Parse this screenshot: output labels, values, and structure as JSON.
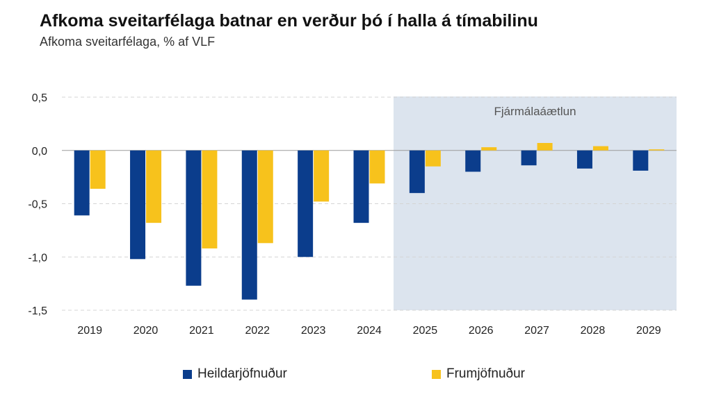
{
  "title": "Afkoma sveitarfélaga batnar en verður þó í halla á tímabilinu",
  "subtitle": "Afkoma sveitarfélaga, % af VLF",
  "chart_data": {
    "type": "bar",
    "categories": [
      "2019",
      "2020",
      "2021",
      "2022",
      "2023",
      "2024",
      "2025",
      "2026",
      "2027",
      "2028",
      "2029"
    ],
    "series": [
      {
        "name": "Heildarjöfnuður",
        "color": "#0b3d8c",
        "values": [
          -0.61,
          -1.02,
          -1.27,
          -1.4,
          -1.0,
          -0.68,
          -0.4,
          -0.2,
          -0.14,
          -0.17,
          -0.19
        ]
      },
      {
        "name": "Frumjöfnuður",
        "color": "#f7c21c",
        "values": [
          -0.36,
          -0.68,
          -0.92,
          -0.87,
          -0.48,
          -0.31,
          -0.15,
          0.03,
          0.07,
          0.04,
          0.01
        ]
      }
    ],
    "ylim": [
      -1.5,
      0.5
    ],
    "yticks": [
      0.5,
      0.0,
      -0.5,
      -1.0,
      -1.5
    ],
    "ytick_labels": [
      "0,5",
      "0,0",
      "-0,5",
      "-1,0",
      "-1,5"
    ],
    "grid": true,
    "forecast_band": {
      "label": "Fjármálaáætlun",
      "from": "2025",
      "to": "2029",
      "color": "#dce4ee"
    },
    "legend_position": "bottom"
  }
}
